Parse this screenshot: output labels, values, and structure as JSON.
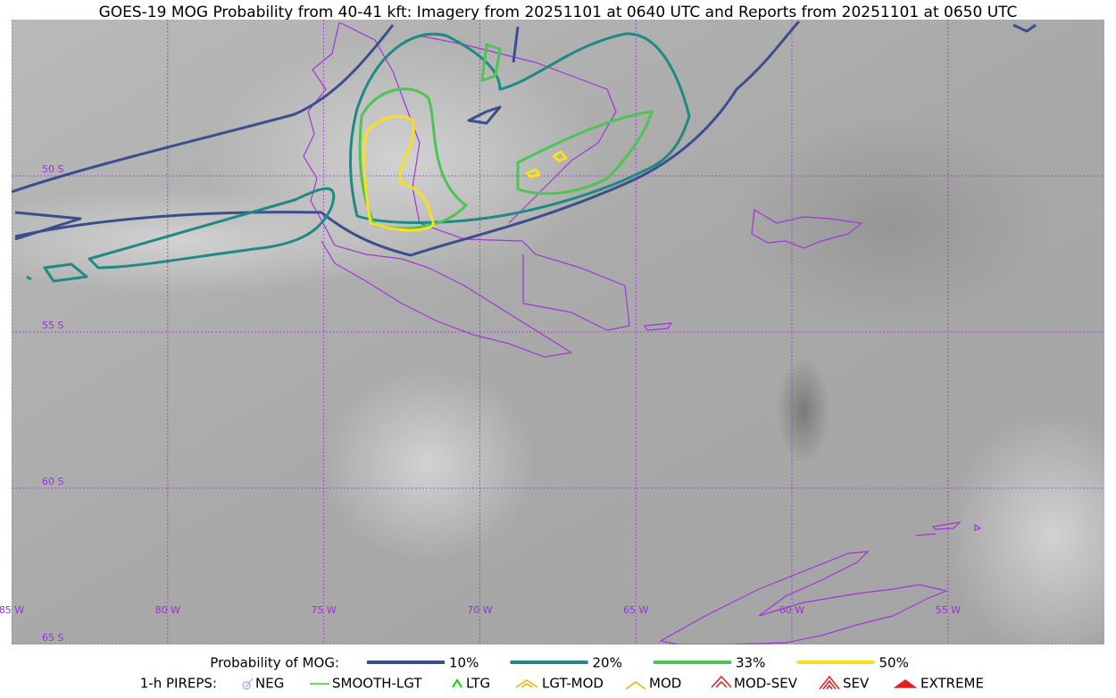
{
  "header": {
    "title": "GOES-19 MOG Probability from 40-41 kft: Imagery from 20251101 at 0640 UTC and Reports from 20251101 at 0650 UTC"
  },
  "map": {
    "lat_labels": [
      "50 S",
      "55 S",
      "60 S",
      "65 S"
    ],
    "lon_labels": [
      "85 W",
      "80 W",
      "75 W",
      "70 W",
      "65 W",
      "60 W",
      "55 W"
    ]
  },
  "legend": {
    "probability": {
      "label": "Probability of MOG:",
      "items": [
        {
          "label": "10%",
          "color": "#3b4f8c"
        },
        {
          "label": "20%",
          "color": "#1e8a83"
        },
        {
          "label": "33%",
          "color": "#4cc555"
        },
        {
          "label": "50%",
          "color": "#f7e11e"
        }
      ]
    },
    "pireps": {
      "label": "1-h PIREPS:",
      "items": [
        "NEG",
        "SMOOTH-LGT",
        "LTG",
        "LGT-MOD",
        "MOD",
        "MOD-SEV",
        "SEV",
        "EXTREME"
      ]
    }
  }
}
